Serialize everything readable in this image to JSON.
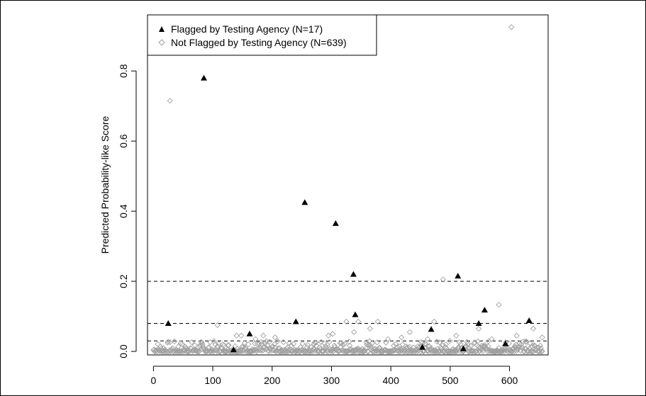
{
  "chart_data": {
    "type": "scatter",
    "title": "",
    "xlabel": "",
    "ylabel": "Predicted Probability-like Score",
    "xlim": [
      -10,
      665
    ],
    "ylim": [
      -0.01,
      0.96
    ],
    "xticks": [
      0,
      100,
      200,
      300,
      400,
      500,
      600
    ],
    "yticks": [
      0.0,
      0.2,
      0.4,
      0.6,
      0.8
    ],
    "hlines": [
      0.2,
      0.08,
      0.03
    ],
    "grid": false,
    "legend_position": "top-left",
    "series": [
      {
        "name": "Flagged by Testing Agency (N=17)",
        "marker": "filled-triangle",
        "color": "#000000",
        "points": [
          [
            25,
            0.08
          ],
          [
            85,
            0.78
          ],
          [
            135,
            0.005
          ],
          [
            162,
            0.05
          ],
          [
            240,
            0.085
          ],
          [
            255,
            0.425
          ],
          [
            307,
            0.365
          ],
          [
            337,
            0.22
          ],
          [
            340,
            0.105
          ],
          [
            453,
            0.012
          ],
          [
            468,
            0.063
          ],
          [
            513,
            0.215
          ],
          [
            522,
            0.008
          ],
          [
            548,
            0.08
          ],
          [
            558,
            0.118
          ],
          [
            593,
            0.022
          ],
          [
            633,
            0.088
          ]
        ]
      },
      {
        "name": "Not Flagged by Testing Agency (N=639)",
        "marker": "open-diamond",
        "color": "#a0a0a0",
        "points": [
          [
            28,
            0.715
          ],
          [
            603,
            0.925
          ],
          [
            488,
            0.205
          ],
          [
            582,
            0.133
          ],
          [
            108,
            0.075
          ],
          [
            325,
            0.085
          ],
          [
            338,
            0.055
          ],
          [
            345,
            0.085
          ],
          [
            365,
            0.065
          ],
          [
            378,
            0.085
          ],
          [
            432,
            0.055
          ],
          [
            462,
            0.035
          ],
          [
            473,
            0.085
          ],
          [
            510,
            0.045
          ],
          [
            548,
            0.065
          ],
          [
            570,
            0.035
          ],
          [
            612,
            0.045
          ],
          [
            640,
            0.065
          ],
          [
            655,
            0.04
          ],
          [
            140,
            0.045
          ],
          [
            148,
            0.045
          ],
          [
            172,
            0.035
          ],
          [
            185,
            0.045
          ],
          [
            205,
            0.04
          ],
          [
            295,
            0.045
          ],
          [
            302,
            0.05
          ],
          [
            395,
            0.035
          ],
          [
            418,
            0.04
          ]
        ],
        "dense_band": {
          "x_from": 0,
          "x_to": 655,
          "count": 611,
          "y_min": 0.0,
          "y_max": 0.03
        }
      }
    ]
  }
}
